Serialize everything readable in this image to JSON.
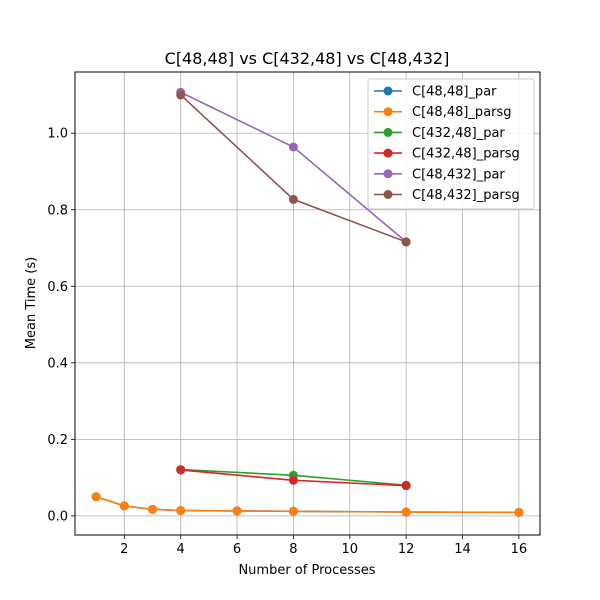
{
  "chart_data": {
    "type": "line",
    "title": "C[48,48] vs C[432,48] vs C[48,432]",
    "xlabel": "Number of Processes",
    "ylabel": "Mean Time (s)",
    "xlim": [
      0.25,
      16.75
    ],
    "ylim": [
      -0.05,
      1.16
    ],
    "xticks": [
      2,
      4,
      6,
      8,
      10,
      12,
      14,
      16
    ],
    "yticks": [
      0.0,
      0.2,
      0.4,
      0.6,
      0.8,
      1.0
    ],
    "grid": true,
    "legend_position": "top-right",
    "series": [
      {
        "name": "C[48,48]_par",
        "color": "#1f77b4",
        "x": [
          1,
          2,
          3,
          4,
          6,
          8,
          12,
          16
        ],
        "y": [
          0.05,
          0.026,
          0.017,
          0.014,
          0.013,
          0.012,
          0.01,
          0.009
        ]
      },
      {
        "name": "C[48,48]_parsg",
        "color": "#ff7f0e",
        "x": [
          1,
          2,
          3,
          4,
          6,
          8,
          12,
          16
        ],
        "y": [
          0.05,
          0.026,
          0.017,
          0.014,
          0.013,
          0.012,
          0.01,
          0.009
        ]
      },
      {
        "name": "C[432,48]_par",
        "color": "#2ca02c",
        "x": [
          4,
          8,
          12
        ],
        "y": [
          0.121,
          0.106,
          0.08
        ]
      },
      {
        "name": "C[432,48]_parsg",
        "color": "#d62728",
        "x": [
          4,
          8,
          12
        ],
        "y": [
          0.12,
          0.093,
          0.079
        ]
      },
      {
        "name": "C[48,432]_par",
        "color": "#9467bd",
        "x": [
          4,
          8,
          12
        ],
        "y": [
          1.107,
          0.964,
          0.716
        ]
      },
      {
        "name": "C[48,432]_parsg",
        "color": "#8c564b",
        "x": [
          4,
          8,
          12
        ],
        "y": [
          1.1,
          0.827,
          0.716
        ]
      }
    ]
  }
}
